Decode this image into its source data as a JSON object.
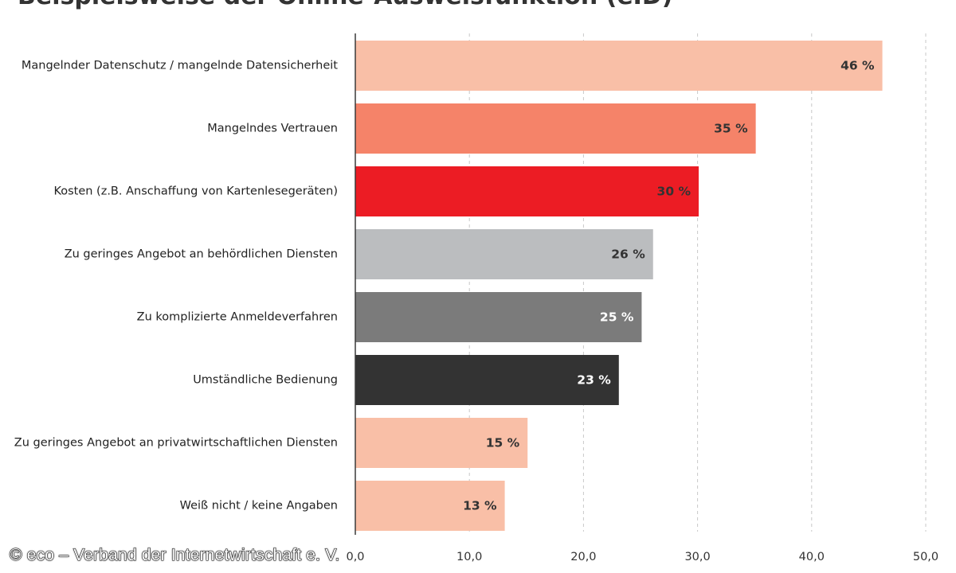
{
  "chart_data": {
    "type": "bar",
    "orientation": "horizontal",
    "title": "Beispielsweise der Online-Ausweisfunktion (eID)",
    "categories": [
      "Mangelnder Datenschutz / mangelnde Datensicherheit",
      "Mangelndes Vertrauen",
      "Kosten (z.B. Anschaffung von Kartenlesegeräten)",
      "Zu geringes Angebot an behördlichen Diensten",
      "Zu komplizierte Anmeldeverfahren",
      "Umständliche Bedienung",
      "Zu geringes Angebot an privatwirtschaftlichen Diensten",
      "Weiß nicht / keine Angaben"
    ],
    "values": [
      46.2,
      35.1,
      30.1,
      26.1,
      25.1,
      23.1,
      15.1,
      13.1
    ],
    "value_labels": [
      "46 %",
      "35 %",
      "30 %",
      "26 %",
      "25 %",
      "23 %",
      "15 %",
      "13 %"
    ],
    "bar_colors": [
      "#f9bfa7",
      "#f58369",
      "#ec1c24",
      "#bbbdbf",
      "#7b7b7b",
      "#333333",
      "#f9bfa7",
      "#f9bfa7"
    ],
    "label_colors": [
      "#333333",
      "#333333",
      "#333333",
      "#333333",
      "#ffffff",
      "#ffffff",
      "#333333",
      "#333333"
    ],
    "xlim": [
      0,
      50
    ],
    "ticks": [
      0,
      10,
      20,
      30,
      40,
      50
    ],
    "tick_labels": [
      "0,0",
      "10,0",
      "20,0",
      "30,0",
      "40,0",
      "50,0"
    ],
    "grid": true,
    "grid_style": "dashed-vertical",
    "legend": "none"
  },
  "copyright": "© eco – Verband der Internetwirtschaft e. V."
}
